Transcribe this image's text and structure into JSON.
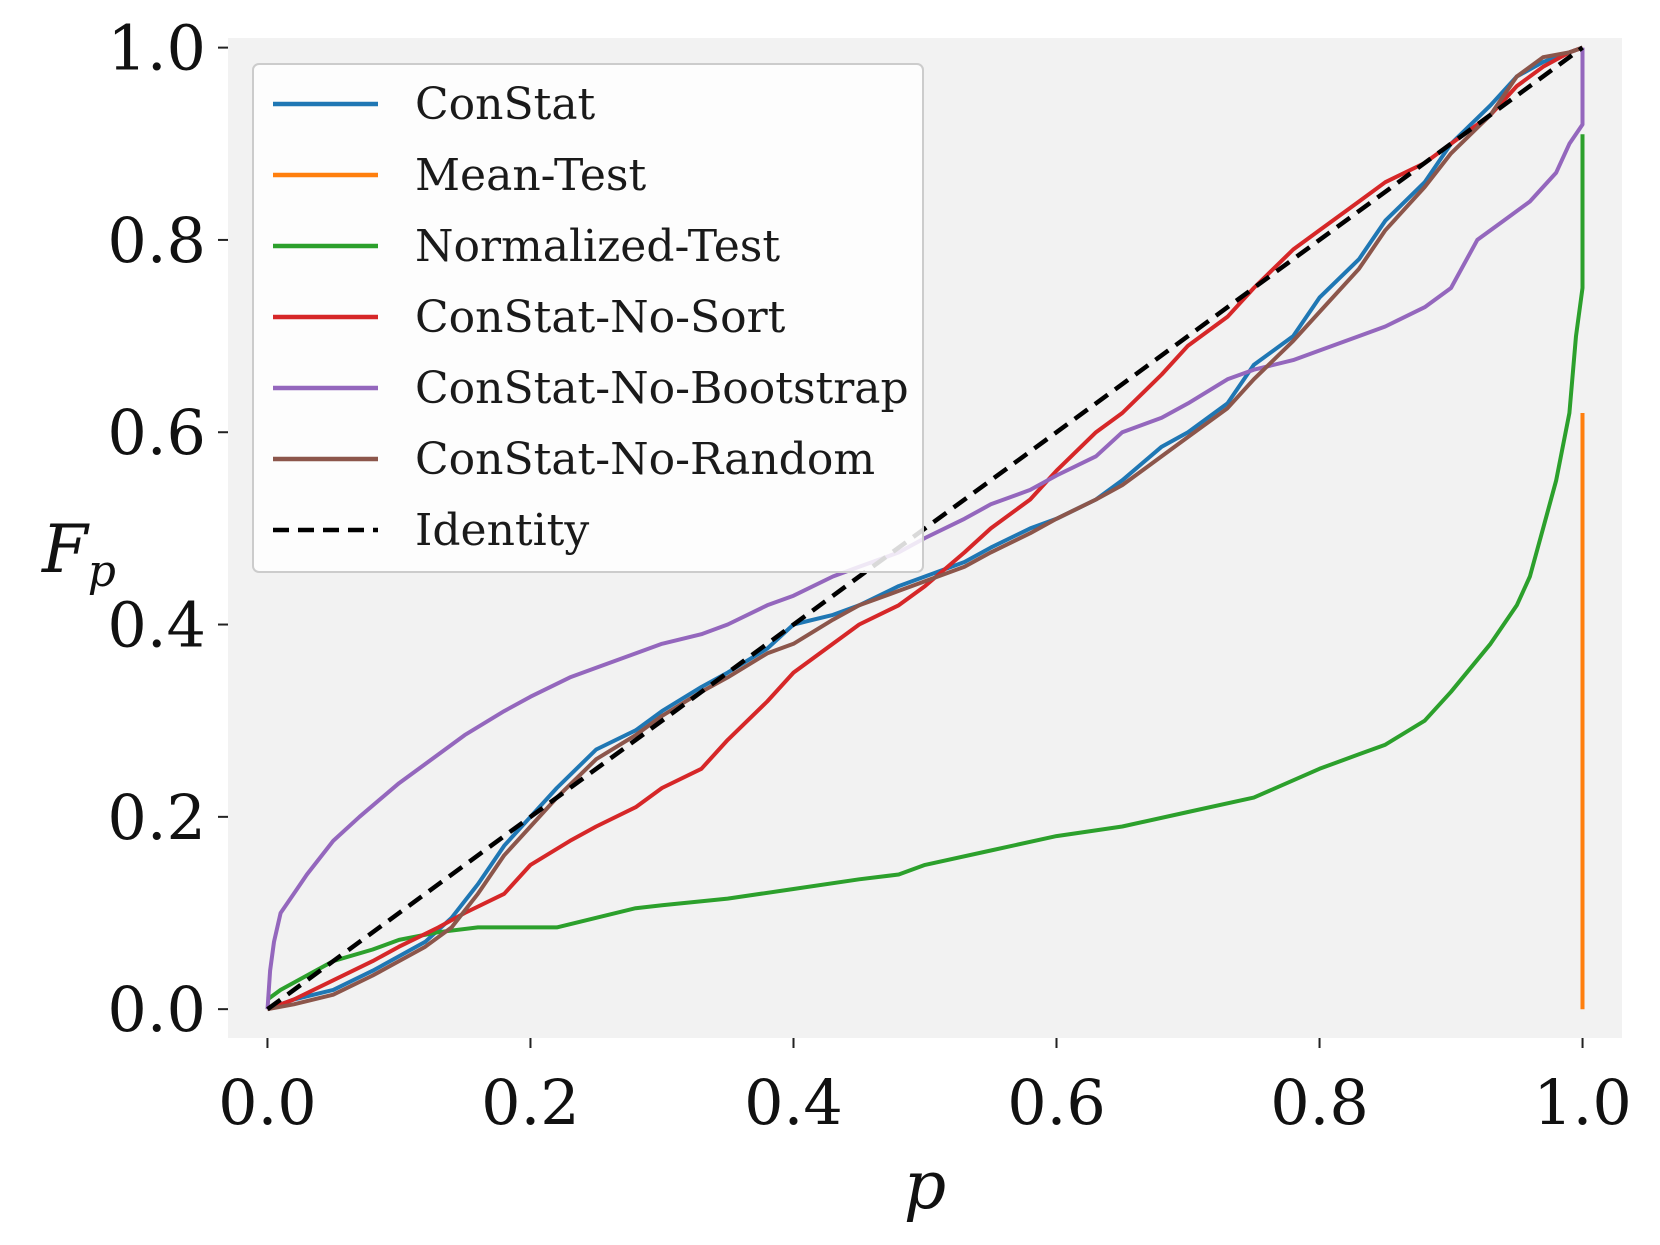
{
  "chart_data": {
    "type": "line",
    "title": "",
    "xlabel": "p",
    "ylabel": {
      "main": "F",
      "sub": "p"
    },
    "xlim": [
      -0.03,
      1.03
    ],
    "ylim": [
      -0.03,
      1.01
    ],
    "xticks": [
      "0.0",
      "0.2",
      "0.4",
      "0.6",
      "0.8",
      "1.0"
    ],
    "yticks": [
      "0.0",
      "0.2",
      "0.4",
      "0.6",
      "0.8",
      "1.0"
    ],
    "xtick_values": [
      0,
      0.2,
      0.4,
      0.6,
      0.8,
      1.0
    ],
    "ytick_values": [
      0,
      0.2,
      0.4,
      0.6,
      0.8,
      1.0
    ],
    "grid": false,
    "background": "#f2f2f2",
    "legend_position": "upper-left",
    "series": [
      {
        "name": "ConStat",
        "color": "#1f77b4",
        "dash": false,
        "x": [
          0,
          0.02,
          0.05,
          0.08,
          0.1,
          0.12,
          0.14,
          0.16,
          0.18,
          0.2,
          0.22,
          0.25,
          0.28,
          0.3,
          0.33,
          0.35,
          0.38,
          0.4,
          0.43,
          0.45,
          0.48,
          0.5,
          0.53,
          0.55,
          0.58,
          0.6,
          0.63,
          0.65,
          0.68,
          0.7,
          0.73,
          0.75,
          0.78,
          0.8,
          0.83,
          0.85,
          0.88,
          0.9,
          0.93,
          0.95,
          0.97,
          0.99,
          1.0
        ],
        "y": [
          0,
          0.01,
          0.02,
          0.04,
          0.055,
          0.07,
          0.095,
          0.13,
          0.17,
          0.2,
          0.23,
          0.27,
          0.29,
          0.31,
          0.335,
          0.35,
          0.375,
          0.4,
          0.41,
          0.42,
          0.44,
          0.45,
          0.465,
          0.48,
          0.5,
          0.51,
          0.53,
          0.55,
          0.585,
          0.6,
          0.63,
          0.67,
          0.7,
          0.74,
          0.78,
          0.82,
          0.86,
          0.9,
          0.94,
          0.97,
          0.985,
          0.995,
          1.0
        ]
      },
      {
        "name": "Mean-Test",
        "color": "#ff7f0e",
        "dash": false,
        "x": [
          1.0,
          1.0
        ],
        "y": [
          0,
          0.62
        ]
      },
      {
        "name": "Normalized-Test",
        "color": "#2ca02c",
        "dash": false,
        "x": [
          0,
          0.01,
          0.03,
          0.05,
          0.08,
          0.1,
          0.13,
          0.16,
          0.2,
          0.22,
          0.25,
          0.28,
          0.3,
          0.35,
          0.4,
          0.45,
          0.48,
          0.5,
          0.55,
          0.6,
          0.65,
          0.7,
          0.75,
          0.8,
          0.83,
          0.85,
          0.88,
          0.9,
          0.93,
          0.95,
          0.96,
          0.97,
          0.98,
          0.99,
          0.995,
          1.0,
          1.0
        ],
        "y": [
          0.01,
          0.02,
          0.035,
          0.05,
          0.062,
          0.072,
          0.08,
          0.085,
          0.085,
          0.085,
          0.095,
          0.105,
          0.108,
          0.115,
          0.125,
          0.135,
          0.14,
          0.15,
          0.165,
          0.18,
          0.19,
          0.205,
          0.22,
          0.25,
          0.265,
          0.275,
          0.3,
          0.33,
          0.38,
          0.42,
          0.45,
          0.5,
          0.55,
          0.62,
          0.7,
          0.75,
          0.91
        ]
      },
      {
        "name": "ConStat-No-Sort",
        "color": "#d62728",
        "dash": false,
        "x": [
          0,
          0.02,
          0.05,
          0.08,
          0.1,
          0.13,
          0.15,
          0.18,
          0.2,
          0.23,
          0.25,
          0.28,
          0.3,
          0.33,
          0.35,
          0.38,
          0.4,
          0.43,
          0.45,
          0.48,
          0.5,
          0.53,
          0.55,
          0.58,
          0.6,
          0.63,
          0.65,
          0.68,
          0.7,
          0.73,
          0.75,
          0.78,
          0.8,
          0.83,
          0.85,
          0.88,
          0.9,
          0.93,
          0.95,
          0.97,
          0.99,
          1.0
        ],
        "y": [
          0,
          0.01,
          0.03,
          0.05,
          0.065,
          0.085,
          0.1,
          0.12,
          0.15,
          0.175,
          0.19,
          0.21,
          0.23,
          0.25,
          0.28,
          0.32,
          0.35,
          0.38,
          0.4,
          0.42,
          0.44,
          0.475,
          0.5,
          0.53,
          0.56,
          0.6,
          0.62,
          0.66,
          0.69,
          0.72,
          0.75,
          0.79,
          0.81,
          0.84,
          0.86,
          0.88,
          0.9,
          0.93,
          0.96,
          0.98,
          0.995,
          1.0
        ]
      },
      {
        "name": "ConStat-No-Bootstrap",
        "color": "#9467bd",
        "dash": false,
        "x": [
          0,
          0.002,
          0.005,
          0.01,
          0.02,
          0.03,
          0.05,
          0.07,
          0.1,
          0.12,
          0.15,
          0.18,
          0.2,
          0.23,
          0.25,
          0.28,
          0.3,
          0.33,
          0.35,
          0.38,
          0.4,
          0.43,
          0.45,
          0.48,
          0.5,
          0.53,
          0.55,
          0.58,
          0.6,
          0.63,
          0.65,
          0.68,
          0.7,
          0.73,
          0.75,
          0.78,
          0.8,
          0.83,
          0.85,
          0.88,
          0.9,
          0.92,
          0.94,
          0.96,
          0.98,
          0.99,
          1.0,
          1.0
        ],
        "y": [
          0,
          0.04,
          0.07,
          0.1,
          0.12,
          0.14,
          0.175,
          0.2,
          0.235,
          0.255,
          0.285,
          0.31,
          0.325,
          0.345,
          0.355,
          0.37,
          0.38,
          0.39,
          0.4,
          0.42,
          0.43,
          0.45,
          0.46,
          0.475,
          0.49,
          0.51,
          0.525,
          0.54,
          0.555,
          0.575,
          0.6,
          0.615,
          0.63,
          0.655,
          0.665,
          0.675,
          0.685,
          0.7,
          0.71,
          0.73,
          0.75,
          0.8,
          0.82,
          0.84,
          0.87,
          0.9,
          0.92,
          1.0
        ]
      },
      {
        "name": "ConStat-No-Random",
        "color": "#8c564b",
        "dash": false,
        "x": [
          0,
          0.02,
          0.05,
          0.08,
          0.1,
          0.12,
          0.14,
          0.16,
          0.18,
          0.2,
          0.22,
          0.25,
          0.28,
          0.3,
          0.33,
          0.35,
          0.38,
          0.4,
          0.43,
          0.45,
          0.48,
          0.5,
          0.53,
          0.55,
          0.58,
          0.6,
          0.63,
          0.65,
          0.68,
          0.7,
          0.73,
          0.75,
          0.78,
          0.8,
          0.83,
          0.85,
          0.88,
          0.9,
          0.93,
          0.95,
          0.97,
          0.99,
          1.0
        ],
        "y": [
          0,
          0.005,
          0.015,
          0.035,
          0.05,
          0.065,
          0.085,
          0.12,
          0.16,
          0.19,
          0.22,
          0.26,
          0.285,
          0.305,
          0.33,
          0.345,
          0.37,
          0.38,
          0.405,
          0.42,
          0.435,
          0.445,
          0.46,
          0.475,
          0.495,
          0.51,
          0.53,
          0.545,
          0.575,
          0.595,
          0.625,
          0.655,
          0.695,
          0.725,
          0.77,
          0.81,
          0.855,
          0.89,
          0.93,
          0.97,
          0.99,
          0.995,
          1.0
        ]
      },
      {
        "name": "Identity",
        "color": "#000000",
        "dash": true,
        "x": [
          0,
          1
        ],
        "y": [
          0,
          1
        ]
      }
    ]
  }
}
